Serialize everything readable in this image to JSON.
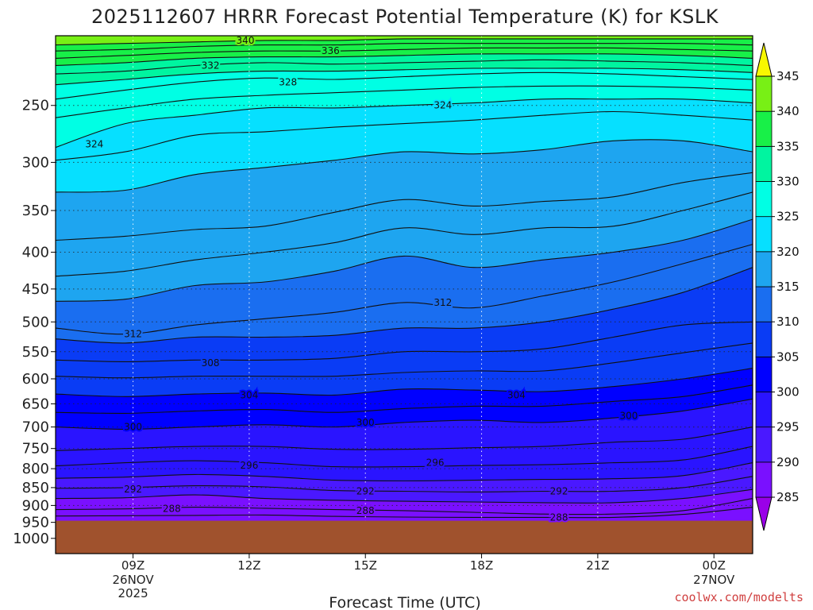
{
  "chart_data": {
    "type": "heatmap",
    "subtype": "time-pressure cross-section with filled contours",
    "title": "2025112607 HRRR Forecast Potential Temperature (K) for KSLK",
    "xlabel": "Forecast Time (UTC)",
    "ylabel": "",
    "credit": "coolwx.com/modelts",
    "x_ticks": [
      {
        "label": "09Z",
        "sub": [
          "26NOV",
          "2025"
        ],
        "hour": 9
      },
      {
        "label": "12Z",
        "sub": [],
        "hour": 12
      },
      {
        "label": "15Z",
        "sub": [],
        "hour": 15
      },
      {
        "label": "18Z",
        "sub": [],
        "hour": 18
      },
      {
        "label": "21Z",
        "sub": [],
        "hour": 21
      },
      {
        "label": "00Z",
        "sub": [
          "27NOV"
        ],
        "hour": 24
      }
    ],
    "xlim_hours": [
      7.0,
      25.0
    ],
    "y_axis": "pressure (hPa), log scale, reversed",
    "ylim": [
      1050,
      200
    ],
    "y_ticks": [
      250,
      300,
      350,
      400,
      450,
      500,
      550,
      600,
      650,
      700,
      750,
      800,
      850,
      900,
      950,
      1000
    ],
    "y_tick_labels": [
      "250",
      "300",
      "350",
      "400",
      "450",
      "500",
      "550",
      "600",
      "650",
      "700",
      "750",
      "800",
      "850",
      "900",
      "950",
      "1000"
    ],
    "grid": "dotted",
    "surface_pressure": 945,
    "colorbar": {
      "placement": "right",
      "min": 280,
      "max": 350,
      "step": 5,
      "labels": [
        "345",
        "340",
        "335",
        "330",
        "325",
        "320",
        "315",
        "310",
        "305",
        "300",
        "295",
        "290",
        "285"
      ],
      "colors": [
        "#9a00e8",
        "#7a10ff",
        "#4a18ff",
        "#2a14ff",
        "#0000ff",
        "#0a3cf5",
        "#1a6ef0",
        "#1ea5f0",
        "#06e0ff",
        "#00ffe4",
        "#00f5a0",
        "#18f048",
        "#78f015",
        "#f8f800"
      ]
    },
    "isentropes": [
      {
        "theta": 286,
        "p": [
          931,
          930,
          929,
          928,
          932,
          934,
          935,
          935,
          935,
          926,
          905
        ]
      },
      {
        "theta": 288,
        "p": [
          912,
          910,
          905,
          908,
          912,
          915,
          920,
          925,
          925,
          915,
          880
        ]
      },
      {
        "theta": 290,
        "p": [
          880,
          878,
          870,
          880,
          885,
          888,
          890,
          892,
          892,
          880,
          855
        ]
      },
      {
        "theta": 292,
        "p": [
          852,
          850,
          845,
          848,
          858,
          860,
          862,
          860,
          860,
          850,
          820
        ]
      },
      {
        "theta": 294,
        "p": [
          825,
          822,
          815,
          820,
          830,
          832,
          830,
          828,
          826,
          818,
          785
        ]
      },
      {
        "theta": 296,
        "p": [
          793,
          785,
          780,
          785,
          795,
          795,
          792,
          790,
          785,
          778,
          745
        ]
      },
      {
        "theta": 298,
        "p": [
          755,
          750,
          745,
          745,
          752,
          752,
          748,
          745,
          735,
          728,
          700
        ]
      },
      {
        "theta": 300,
        "p": [
          700,
          705,
          700,
          695,
          700,
          690,
          685,
          690,
          680,
          665,
          640
        ]
      },
      {
        "theta": 302,
        "p": [
          668,
          670,
          665,
          662,
          668,
          660,
          655,
          655,
          645,
          635,
          612
        ]
      },
      {
        "theta": 304,
        "p": [
          630,
          635,
          630,
          628,
          632,
          620,
          622,
          625,
          615,
          600,
          580
        ]
      },
      {
        "theta": 306,
        "p": [
          595,
          598,
          595,
          595,
          595,
          588,
          585,
          585,
          570,
          552,
          535
        ]
      },
      {
        "theta": 308,
        "p": [
          565,
          568,
          565,
          565,
          562,
          550,
          550,
          545,
          525,
          505,
          500
        ]
      },
      {
        "theta": 310,
        "p": [
          528,
          535,
          525,
          525,
          522,
          510,
          510,
          500,
          480,
          455,
          420
        ]
      },
      {
        "theta": 312,
        "p": [
          510,
          520,
          505,
          495,
          485,
          470,
          478,
          460,
          440,
          415,
          390
        ]
      },
      {
        "theta": 314,
        "p": [
          468,
          465,
          445,
          440,
          425,
          405,
          420,
          410,
          400,
          385,
          360
        ]
      },
      {
        "theta": 316,
        "p": [
          432,
          425,
          410,
          400,
          388,
          370,
          378,
          370,
          368,
          350,
          330
        ]
      },
      {
        "theta": 318,
        "p": [
          385,
          380,
          372,
          368,
          352,
          338,
          345,
          340,
          335,
          320,
          310
        ]
      },
      {
        "theta": 320,
        "p": [
          330,
          328,
          312,
          305,
          298,
          290,
          292,
          288,
          280,
          280,
          290
        ]
      },
      {
        "theta": 322,
        "p": [
          298,
          290,
          275,
          272,
          268,
          265,
          262,
          258,
          255,
          258,
          262
        ]
      },
      {
        "theta": 324,
        "p": [
          286,
          265,
          258,
          252,
          252,
          250,
          248,
          245,
          245,
          245,
          248
        ]
      },
      {
        "theta": 326,
        "p": [
          260,
          252,
          245,
          242,
          240,
          238,
          236,
          235,
          235,
          236,
          238
        ]
      },
      {
        "theta": 328,
        "p": [
          245,
          238,
          232,
          229,
          230,
          228,
          226,
          225,
          226,
          228,
          230
        ]
      },
      {
        "theta": 330,
        "p": [
          234,
          230,
          226,
          224,
          224,
          223,
          222,
          222,
          222,
          223,
          225
        ]
      },
      {
        "theta": 332,
        "p": [
          226,
          224,
          220,
          218,
          219,
          218,
          217,
          216,
          217,
          218,
          220
        ]
      },
      {
        "theta": 334,
        "p": [
          220,
          218,
          215,
          214,
          214,
          213,
          212,
          212,
          212,
          213,
          215
        ]
      },
      {
        "theta": 336,
        "p": [
          215,
          213,
          211,
          210,
          210,
          209,
          208,
          208,
          208,
          209,
          210
        ]
      },
      {
        "theta": 338,
        "p": [
          210,
          209,
          207,
          206,
          206,
          205,
          205,
          205,
          205,
          205,
          206
        ]
      },
      {
        "theta": 340,
        "p": [
          206,
          205,
          204,
          203,
          203,
          202,
          202,
          202,
          202,
          202,
          202
        ]
      }
    ],
    "isentrope_hours": [
      7,
      8.8,
      10.6,
      12.4,
      14.2,
      16,
      17.8,
      19.6,
      21.4,
      23.2,
      25
    ],
    "contour_labels": [
      {
        "text": "340",
        "hour": 11.9,
        "p": 203
      },
      {
        "text": "336",
        "hour": 14.1,
        "p": 210
      },
      {
        "text": "332",
        "hour": 11.0,
        "p": 220
      },
      {
        "text": "328",
        "hour": 13.0,
        "p": 232
      },
      {
        "text": "324",
        "hour": 17.0,
        "p": 250
      },
      {
        "text": "324",
        "hour": 8.0,
        "p": 283
      },
      {
        "text": "312",
        "hour": 17.0,
        "p": 470
      },
      {
        "text": "312",
        "hour": 9.0,
        "p": 520
      },
      {
        "text": "308",
        "hour": 11.0,
        "p": 570
      },
      {
        "text": "304",
        "hour": 12.0,
        "p": 632
      },
      {
        "text": "304",
        "hour": 18.9,
        "p": 632
      },
      {
        "text": "300",
        "hour": 15.0,
        "p": 690
      },
      {
        "text": "300",
        "hour": 21.8,
        "p": 675
      },
      {
        "text": "300",
        "hour": 9.0,
        "p": 700
      },
      {
        "text": "296",
        "hour": 12.0,
        "p": 792
      },
      {
        "text": "296",
        "hour": 16.8,
        "p": 785
      },
      {
        "text": "292",
        "hour": 9.0,
        "p": 855
      },
      {
        "text": "292",
        "hour": 15.0,
        "p": 860
      },
      {
        "text": "292",
        "hour": 20.0,
        "p": 860
      },
      {
        "text": "288",
        "hour": 10.0,
        "p": 910
      },
      {
        "text": "288",
        "hour": 15.0,
        "p": 915
      },
      {
        "text": "288",
        "hour": 20.0,
        "p": 935
      }
    ]
  }
}
